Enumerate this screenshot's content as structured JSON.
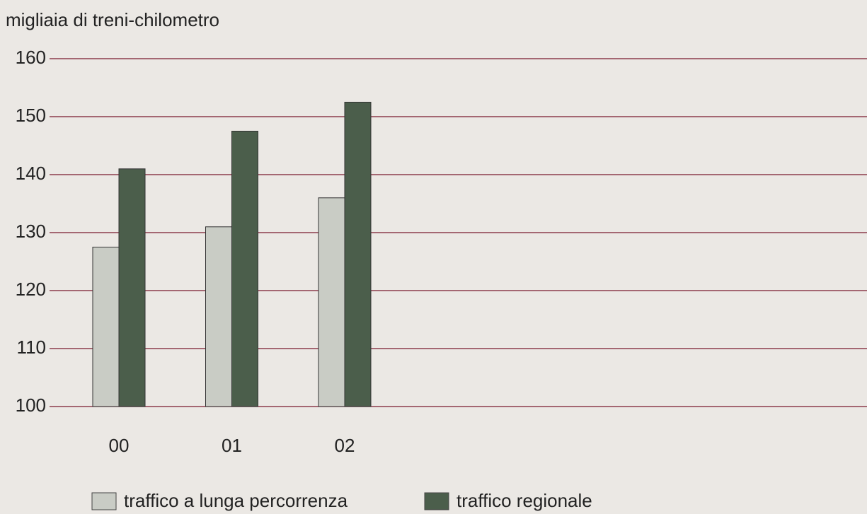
{
  "chart_data": {
    "type": "bar",
    "y_label": "migliaia di treni-chilometro",
    "categories": [
      "00",
      "01",
      "02"
    ],
    "series": [
      {
        "name": "traffico a lunga percorrenza",
        "color": "#c9ccc5",
        "values": [
          127.5,
          131,
          136
        ]
      },
      {
        "name": "traffico regionale",
        "color": "#4b5e4b",
        "values": [
          141,
          147.5,
          152.5
        ]
      }
    ],
    "ylim": [
      100,
      160
    ],
    "yticks": [
      100,
      110,
      120,
      130,
      140,
      150,
      160
    ],
    "grid": true
  }
}
